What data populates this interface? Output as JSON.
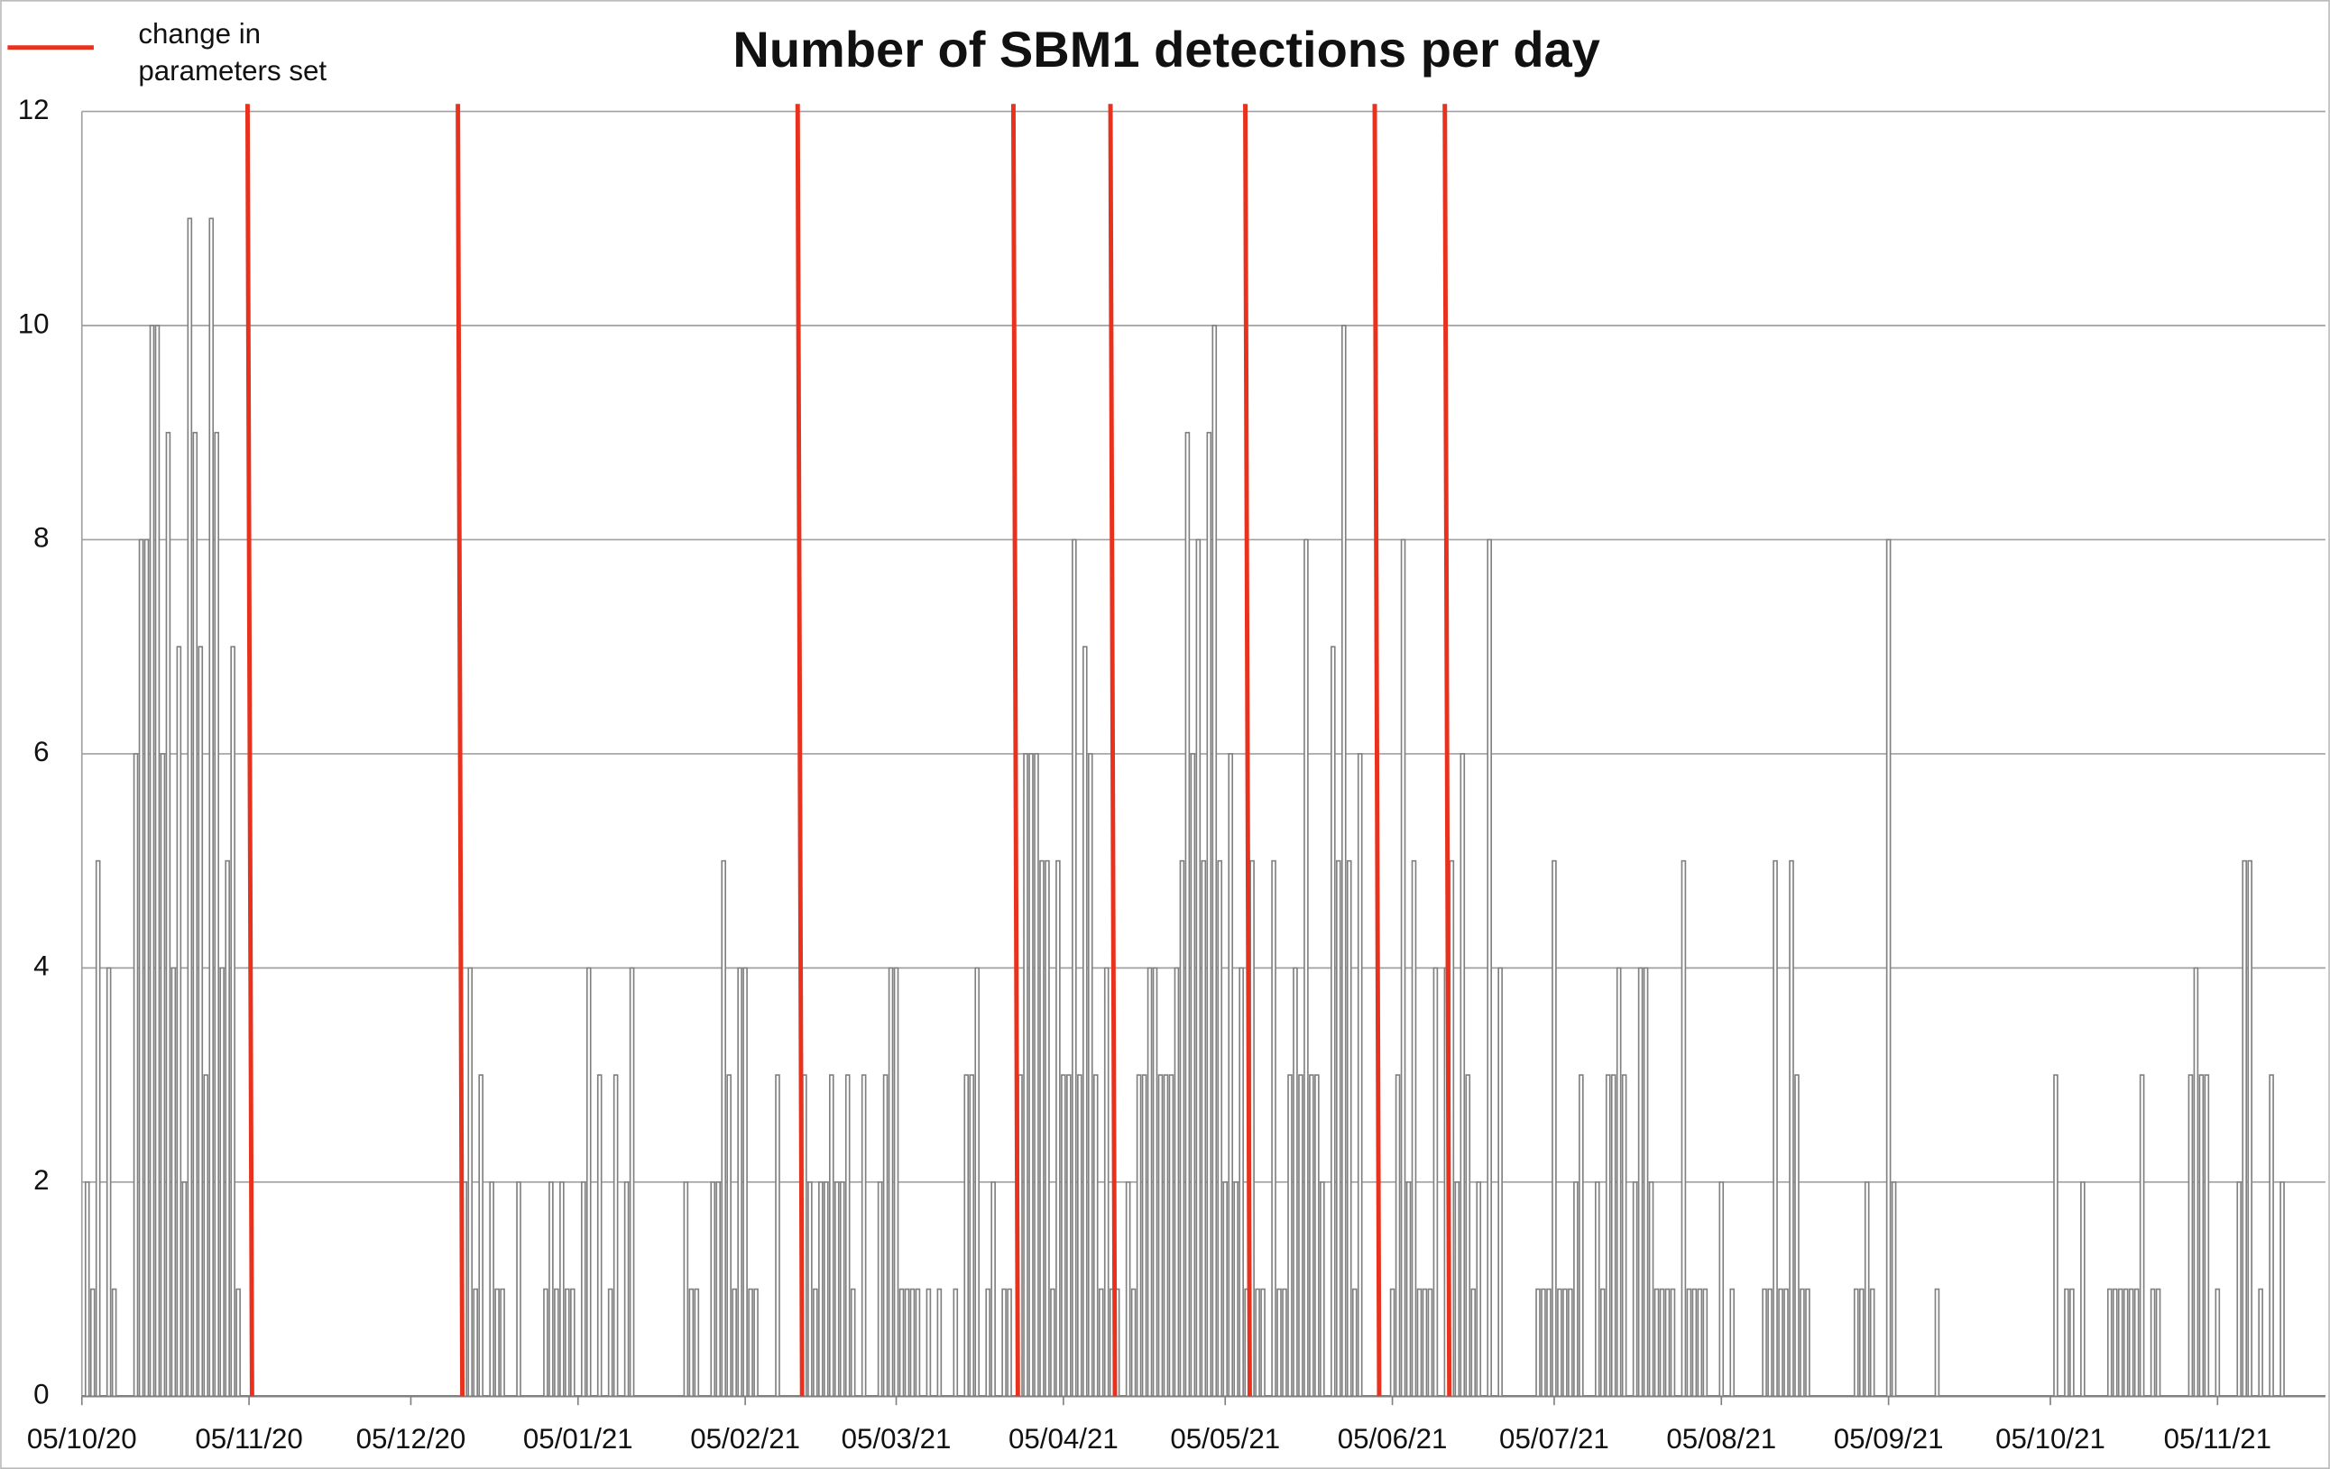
{
  "chart_data": {
    "type": "bar",
    "title": "Number of SBM1 detections per day",
    "color": "#808080",
    "grid": true,
    "x": [
      "2020-10-06",
      "2020-10-07",
      "2020-10-08",
      "2020-10-10",
      "2020-10-11",
      "2020-10-15",
      "2020-10-16",
      "2020-10-17",
      "2020-10-18",
      "2020-10-19",
      "2020-10-20",
      "2020-10-21",
      "2020-10-22",
      "2020-10-23",
      "2020-10-24",
      "2020-10-25",
      "2020-10-26",
      "2020-10-27",
      "2020-10-28",
      "2020-10-29",
      "2020-10-30",
      "2020-10-31",
      "2020-11-01",
      "2020-11-02",
      "2020-11-03",
      "2020-12-15",
      "2020-12-16",
      "2020-12-17",
      "2020-12-18",
      "2020-12-20",
      "2020-12-21",
      "2020-12-22",
      "2020-12-25",
      "2020-12-30",
      "2020-12-31",
      "2021-01-01",
      "2021-01-02",
      "2021-01-03",
      "2021-01-04",
      "2021-01-06",
      "2021-01-07",
      "2021-01-09",
      "2021-01-11",
      "2021-01-12",
      "2021-01-14",
      "2021-01-15",
      "2021-01-25",
      "2021-01-26",
      "2021-01-27",
      "2021-01-30",
      "2021-01-31",
      "2021-02-01",
      "2021-02-02",
      "2021-02-03",
      "2021-02-04",
      "2021-02-05",
      "2021-02-06",
      "2021-02-07",
      "2021-02-11",
      "2021-02-16",
      "2021-02-17",
      "2021-02-18",
      "2021-02-19",
      "2021-02-20",
      "2021-02-21",
      "2021-02-22",
      "2021-02-23",
      "2021-02-24",
      "2021-02-25",
      "2021-02-27",
      "2021-03-02",
      "2021-03-03",
      "2021-03-04",
      "2021-03-05",
      "2021-03-06",
      "2021-03-07",
      "2021-03-08",
      "2021-03-09",
      "2021-03-11",
      "2021-03-13",
      "2021-03-16",
      "2021-03-18",
      "2021-03-19",
      "2021-03-20",
      "2021-03-22",
      "2021-03-23",
      "2021-03-25",
      "2021-03-26",
      "2021-03-28",
      "2021-03-29",
      "2021-03-30",
      "2021-03-31",
      "2021-04-01",
      "2021-04-02",
      "2021-04-03",
      "2021-04-04",
      "2021-04-05",
      "2021-04-06",
      "2021-04-07",
      "2021-04-08",
      "2021-04-09",
      "2021-04-10",
      "2021-04-11",
      "2021-04-12",
      "2021-04-13",
      "2021-04-14",
      "2021-04-15",
      "2021-04-17",
      "2021-04-18",
      "2021-04-19",
      "2021-04-20",
      "2021-04-21",
      "2021-04-22",
      "2021-04-23",
      "2021-04-24",
      "2021-04-25",
      "2021-04-26",
      "2021-04-27",
      "2021-04-28",
      "2021-04-29",
      "2021-04-30",
      "2021-05-01",
      "2021-05-02",
      "2021-05-03",
      "2021-05-04",
      "2021-05-05",
      "2021-05-06",
      "2021-05-07",
      "2021-05-08",
      "2021-05-09",
      "2021-05-10",
      "2021-05-11",
      "2021-05-12",
      "2021-05-14",
      "2021-05-15",
      "2021-05-16",
      "2021-05-17",
      "2021-05-18",
      "2021-05-19",
      "2021-05-20",
      "2021-05-21",
      "2021-05-22",
      "2021-05-23",
      "2021-05-25",
      "2021-05-26",
      "2021-05-27",
      "2021-05-28",
      "2021-05-29",
      "2021-05-30",
      "2021-06-05",
      "2021-06-06",
      "2021-06-07",
      "2021-06-08",
      "2021-06-09",
      "2021-06-10",
      "2021-06-11",
      "2021-06-12",
      "2021-06-13",
      "2021-06-15",
      "2021-06-16",
      "2021-06-17",
      "2021-06-18",
      "2021-06-19",
      "2021-06-20",
      "2021-06-21",
      "2021-06-23",
      "2021-06-25",
      "2021-07-02",
      "2021-07-03",
      "2021-07-04",
      "2021-07-05",
      "2021-07-06",
      "2021-07-07",
      "2021-07-08",
      "2021-07-09",
      "2021-07-10",
      "2021-07-13",
      "2021-07-14",
      "2021-07-15",
      "2021-07-16",
      "2021-07-17",
      "2021-07-18",
      "2021-07-20",
      "2021-07-21",
      "2021-07-22",
      "2021-07-23",
      "2021-07-24",
      "2021-07-25",
      "2021-07-26",
      "2021-07-27",
      "2021-07-29",
      "2021-07-30",
      "2021-07-31",
      "2021-08-01",
      "2021-08-02",
      "2021-08-05",
      "2021-08-07",
      "2021-08-13",
      "2021-08-14",
      "2021-08-15",
      "2021-08-16",
      "2021-08-17",
      "2021-08-18",
      "2021-08-19",
      "2021-08-20",
      "2021-08-21",
      "2021-08-30",
      "2021-08-31",
      "2021-09-01",
      "2021-09-02",
      "2021-09-05",
      "2021-09-06",
      "2021-09-14",
      "2021-10-06",
      "2021-10-08",
      "2021-10-09",
      "2021-10-11",
      "2021-10-16",
      "2021-10-17",
      "2021-10-18",
      "2021-10-19",
      "2021-10-20",
      "2021-10-21",
      "2021-10-22",
      "2021-10-24",
      "2021-10-25",
      "2021-10-31",
      "2021-11-01",
      "2021-11-02",
      "2021-11-03",
      "2021-11-05",
      "2021-11-09",
      "2021-11-10",
      "2021-11-11",
      "2021-11-13",
      "2021-11-15",
      "2021-11-17"
    ],
    "values": [
      2,
      1,
      5,
      4,
      1,
      6,
      8,
      8,
      10,
      10,
      6,
      9,
      4,
      7,
      2,
      11,
      9,
      7,
      3,
      11,
      9,
      4,
      5,
      7,
      1,
      2,
      4,
      1,
      3,
      2,
      1,
      1,
      2,
      1,
      2,
      1,
      2,
      1,
      1,
      2,
      4,
      3,
      1,
      3,
      2,
      4,
      2,
      1,
      1,
      2,
      2,
      5,
      3,
      1,
      4,
      4,
      1,
      1,
      3,
      3,
      2,
      1,
      2,
      2,
      3,
      2,
      2,
      3,
      1,
      3,
      2,
      3,
      4,
      4,
      1,
      1,
      1,
      1,
      1,
      1,
      1,
      3,
      3,
      4,
      1,
      2,
      1,
      1,
      3,
      6,
      6,
      6,
      5,
      5,
      1,
      5,
      3,
      3,
      8,
      3,
      7,
      6,
      3,
      1,
      4,
      1,
      1,
      2,
      1,
      3,
      3,
      4,
      4,
      3,
      3,
      3,
      4,
      5,
      9,
      6,
      8,
      5,
      9,
      10,
      5,
      2,
      6,
      2,
      4,
      1,
      5,
      1,
      1,
      5,
      1,
      1,
      3,
      4,
      3,
      8,
      3,
      3,
      2,
      7,
      5,
      10,
      5,
      1,
      6,
      1,
      3,
      8,
      2,
      5,
      1,
      1,
      1,
      4,
      4,
      5,
      2,
      6,
      3,
      1,
      2,
      8,
      4,
      1,
      1,
      1,
      5,
      1,
      1,
      1,
      2,
      3,
      2,
      1,
      3,
      3,
      4,
      3,
      2,
      4,
      4,
      2,
      1,
      1,
      1,
      1,
      5,
      1,
      1,
      1,
      1,
      2,
      1,
      1,
      1,
      5,
      1,
      1,
      5,
      3,
      1,
      1,
      1,
      1,
      2,
      1,
      8,
      2,
      1,
      3,
      1,
      1,
      2,
      1,
      1,
      1,
      1,
      1,
      1,
      3,
      1,
      1,
      3,
      4,
      3,
      3,
      1,
      2,
      5,
      5,
      1,
      3,
      2
    ],
    "xlim": [
      "2020-10-05",
      "2021-11-25"
    ],
    "xticks": [
      {
        "value": "2020-10-05",
        "label": "05/10/20"
      },
      {
        "value": "2020-11-05",
        "label": "05/11/20"
      },
      {
        "value": "2020-12-05",
        "label": "05/12/20"
      },
      {
        "value": "2021-01-05",
        "label": "05/01/21"
      },
      {
        "value": "2021-02-05",
        "label": "05/02/21"
      },
      {
        "value": "2021-03-05",
        "label": "05/03/21"
      },
      {
        "value": "2021-04-05",
        "label": "05/04/21"
      },
      {
        "value": "2021-05-05",
        "label": "05/05/21"
      },
      {
        "value": "2021-06-05",
        "label": "05/06/21"
      },
      {
        "value": "2021-07-05",
        "label": "05/07/21"
      },
      {
        "value": "2021-08-05",
        "label": "05/08/21"
      },
      {
        "value": "2021-09-05",
        "label": "05/09/21"
      },
      {
        "value": "2021-10-05",
        "label": "05/10/21"
      },
      {
        "value": "2021-11-05",
        "label": "05/11/21"
      }
    ],
    "ylim": [
      0,
      12
    ],
    "yticks": [
      0,
      2,
      4,
      6,
      8,
      10,
      12
    ],
    "markers": {
      "label": "change in parameters set",
      "color": "#e8321e",
      "legend": "top-left",
      "x": [
        "2020-11-05",
        "2020-12-14",
        "2021-02-15",
        "2021-03-27",
        "2021-04-14",
        "2021-05-09",
        "2021-06-02",
        "2021-06-15"
      ]
    }
  }
}
